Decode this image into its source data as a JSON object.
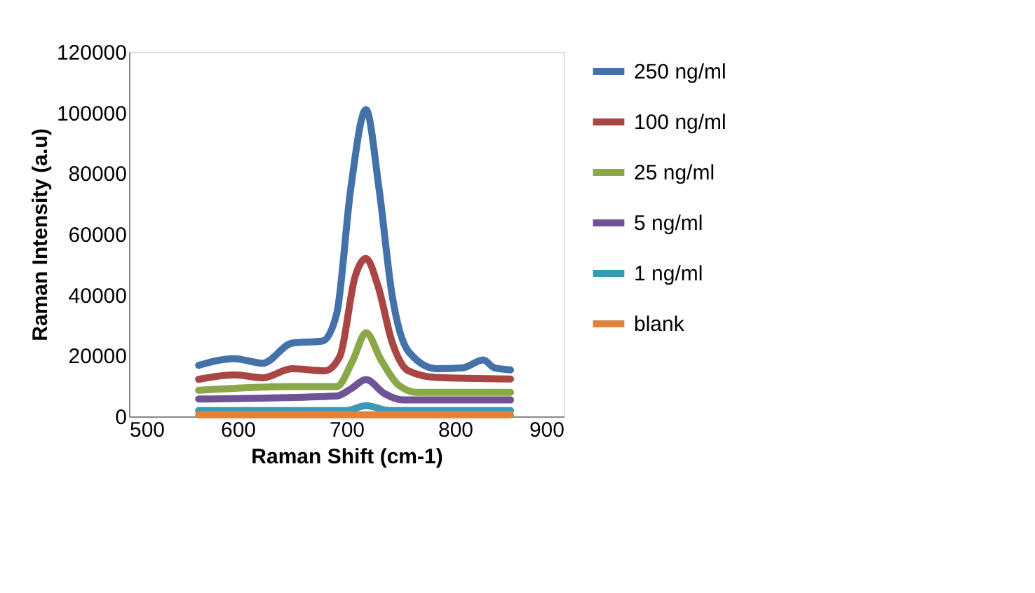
{
  "chart_data": {
    "type": "line",
    "xlabel": "Raman Shift (cm-1)",
    "ylabel": "Raman Intensity (a.u)",
    "xlim": [
      500,
      900
    ],
    "xticks": [
      500,
      600,
      700,
      800,
      900
    ],
    "ylim": [
      0,
      120000
    ],
    "yticks": [
      0,
      20000,
      40000,
      60000,
      80000,
      100000,
      120000
    ],
    "grid": false,
    "legend": "right",
    "marker": "none",
    "line_style": "solid",
    "series": [
      {
        "name": "250 ng/ml",
        "color": "#4472a8",
        "x": [
          564,
          597,
          623,
          650,
          678,
          691,
          704,
          718,
          730,
          742,
          757,
          783,
          807,
          826,
          836,
          851
        ],
        "values": [
          16800,
          19000,
          17500,
          24100,
          24800,
          33700,
          75000,
          101000,
          75000,
          40000,
          21400,
          15700,
          16000,
          18600,
          16000,
          15300
        ]
      },
      {
        "name": "100 ng/ml",
        "color": "#a94542",
        "x": [
          564,
          597,
          623,
          650,
          680,
          694,
          708,
          718,
          729,
          742,
          757,
          783,
          851
        ],
        "values": [
          12200,
          13700,
          12700,
          15700,
          15000,
          19800,
          46000,
          52000,
          43000,
          24500,
          15000,
          12800,
          12300
        ]
      },
      {
        "name": "25 ng/ml",
        "color": "#8aa84a",
        "x": [
          564,
          650,
          691,
          706,
          718,
          732,
          748,
          765,
          851
        ],
        "values": [
          8600,
          9800,
          9800,
          18500,
          27500,
          18500,
          10300,
          7900,
          7900
        ]
      },
      {
        "name": "5 ng/ml",
        "color": "#6e5496",
        "x": [
          564,
          691,
          704,
          718,
          735,
          752,
          851
        ],
        "values": [
          5700,
          6700,
          9000,
          12100,
          7500,
          5400,
          5400
        ]
      },
      {
        "name": "1 ng/ml",
        "color": "#3a9ab5",
        "x": [
          564,
          700,
          718,
          740,
          851
        ],
        "values": [
          1900,
          1900,
          3500,
          1900,
          1900
        ]
      },
      {
        "name": "blank",
        "color": "#e0823a",
        "x": [
          564,
          851
        ],
        "values": [
          500,
          500
        ]
      }
    ]
  }
}
